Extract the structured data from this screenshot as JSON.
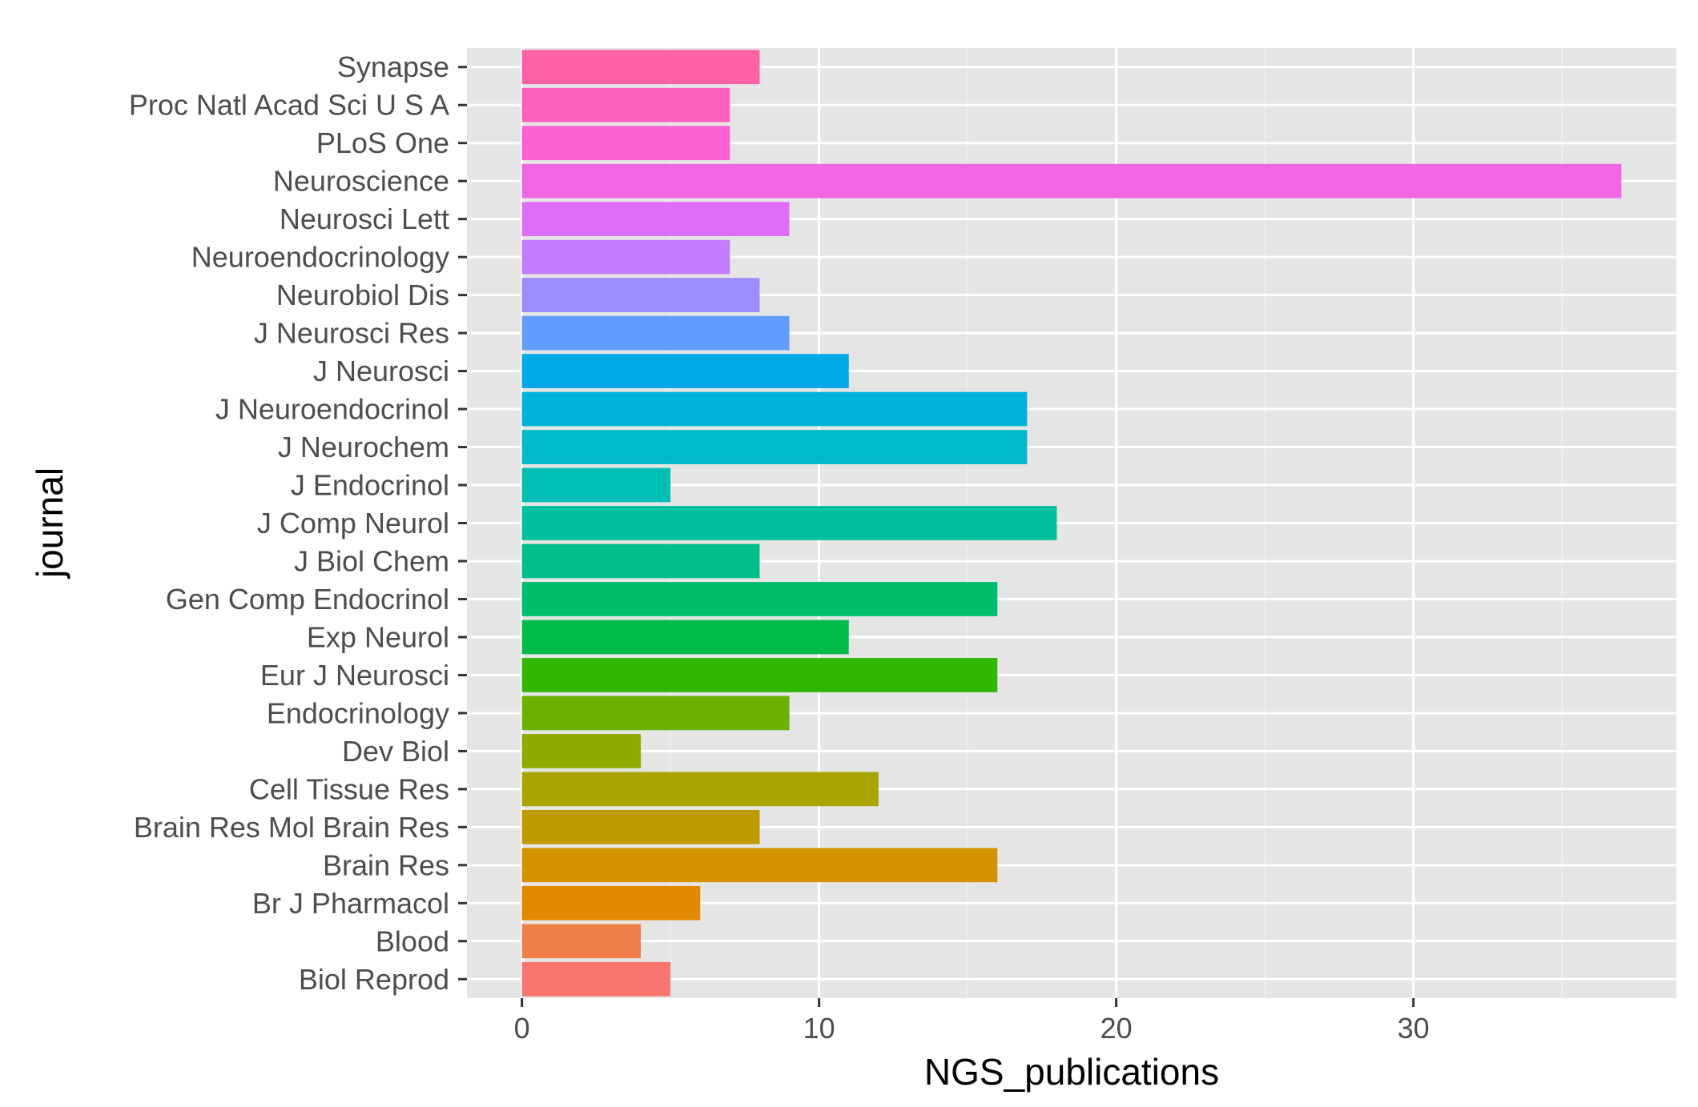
{
  "chart_data": {
    "type": "bar",
    "orientation": "horizontal",
    "xlabel": "NGS_publications",
    "ylabel": "journal",
    "xlim": [
      -1.85,
      38.85
    ],
    "x_ticks": [
      0,
      10,
      20,
      30
    ],
    "x_tick_labels": [
      "0",
      "10",
      "20",
      "30"
    ],
    "grid": true,
    "legend": "none",
    "panel_background": "#e5e5e5",
    "categories": [
      "Biol Reprod",
      "Blood",
      "Br J Pharmacol",
      "Brain Res",
      "Brain Res Mol Brain Res",
      "Cell Tissue Res",
      "Dev Biol",
      "Endocrinology",
      "Eur J Neurosci",
      "Exp Neurol",
      "Gen Comp Endocrinol",
      "J Biol Chem",
      "J Comp Neurol",
      "J Endocrinol",
      "J Neurochem",
      "J Neuroendocrinol",
      "J Neurosci",
      "J Neurosci Res",
      "Neurobiol Dis",
      "Neuroendocrinology",
      "Neurosci Lett",
      "Neuroscience",
      "PLoS One",
      "Proc Natl Acad Sci U S A",
      "Synapse"
    ],
    "values": [
      5,
      4,
      6,
      16,
      8,
      12,
      4,
      9,
      16,
      11,
      16,
      8,
      18,
      5,
      17,
      17,
      11,
      9,
      8,
      7,
      9,
      37,
      7,
      7,
      8
    ],
    "colors": [
      "#F8766D",
      "#EF7F48",
      "#E38900",
      "#D39200",
      "#C09B00",
      "#A9A400",
      "#8EAB00",
      "#6BB100",
      "#31B700",
      "#00BB4A",
      "#00BE6B",
      "#00C087",
      "#00C0A0",
      "#00BEB6",
      "#00BACA",
      "#00B3DA",
      "#00A9E8",
      "#619CFF",
      "#9C8DFF",
      "#C37CFF",
      "#DE6DF7",
      "#F066E5",
      "#FA62D3",
      "#FF62BC",
      "#FF61A5"
    ]
  }
}
